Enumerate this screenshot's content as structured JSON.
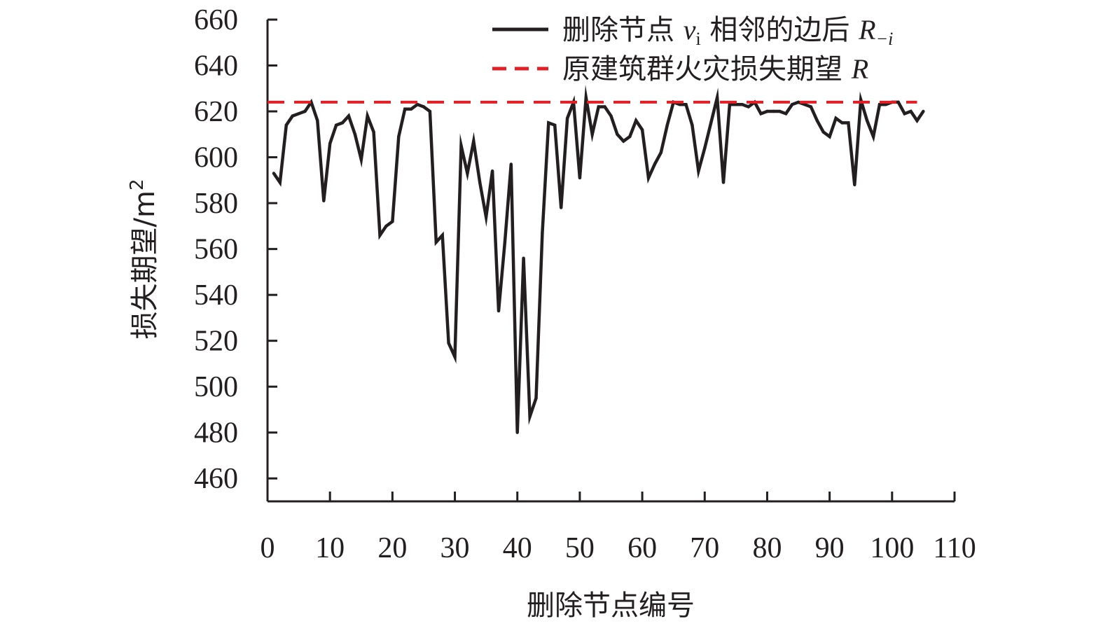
{
  "chart_data": {
    "type": "line",
    "xlabel": "删除节点编号",
    "ylabel": "损失期望/m",
    "ylabel_sup": "2",
    "xlim": [
      0,
      110
    ],
    "ylim": [
      450,
      660
    ],
    "x_ticks": [
      0,
      10,
      20,
      30,
      40,
      50,
      60,
      70,
      80,
      90,
      100,
      110
    ],
    "y_ticks": [
      460,
      480,
      500,
      520,
      540,
      560,
      580,
      600,
      620,
      640,
      660
    ],
    "legend_position": "top-right",
    "series": [
      {
        "name_parts": [
          "删除节点 ",
          "v",
          "i",
          " 相邻的边后 ",
          "R",
          "−i"
        ],
        "style": "solid",
        "color": "#231f20",
        "x": [
          1,
          2,
          3,
          4,
          5,
          6,
          7,
          8,
          9,
          10,
          11,
          12,
          13,
          14,
          15,
          16,
          17,
          18,
          19,
          20,
          21,
          22,
          23,
          24,
          25,
          26,
          27,
          28,
          29,
          30,
          31,
          32,
          33,
          34,
          35,
          36,
          37,
          38,
          39,
          40,
          41,
          42,
          43,
          44,
          45,
          46,
          47,
          48,
          49,
          50,
          51,
          52,
          53,
          54,
          55,
          56,
          57,
          58,
          59,
          60,
          61,
          62,
          63,
          64,
          65,
          66,
          67,
          68,
          69,
          70,
          71,
          72,
          73,
          74,
          75,
          76,
          77,
          78,
          79,
          80,
          81,
          82,
          83,
          84,
          85,
          86,
          87,
          88,
          89,
          90,
          91,
          92,
          93,
          94,
          95,
          96,
          97,
          98,
          99,
          100,
          101,
          102,
          103,
          104,
          105
        ],
        "y": [
          593,
          589,
          614,
          618,
          619,
          620,
          624,
          616,
          581,
          606,
          614,
          615,
          618,
          610,
          599,
          618,
          611,
          566,
          570,
          572,
          609,
          621,
          621,
          623,
          622,
          620,
          563,
          566,
          519,
          513,
          605,
          593,
          607,
          589,
          574,
          594,
          533,
          563,
          597,
          480,
          556,
          487,
          495,
          567,
          615,
          614,
          578,
          617,
          624,
          591,
          626,
          610,
          622,
          622,
          618,
          610,
          607,
          609,
          616,
          612,
          591,
          597,
          602,
          614,
          624,
          623,
          623,
          614,
          594,
          604,
          615,
          626,
          589,
          623,
          623,
          623,
          622,
          624,
          619,
          620,
          620,
          620,
          619,
          623,
          624,
          623,
          622,
          616,
          611,
          609,
          617,
          615,
          615,
          588,
          625,
          616,
          609,
          623,
          623,
          624,
          624,
          619,
          620,
          616,
          620
        ]
      },
      {
        "name_parts": [
          "原建筑群火灾损失期望 ",
          "R"
        ],
        "style": "dashed",
        "color": "#e31f26",
        "x": [
          0,
          104
        ],
        "y": [
          624,
          624
        ]
      }
    ]
  }
}
